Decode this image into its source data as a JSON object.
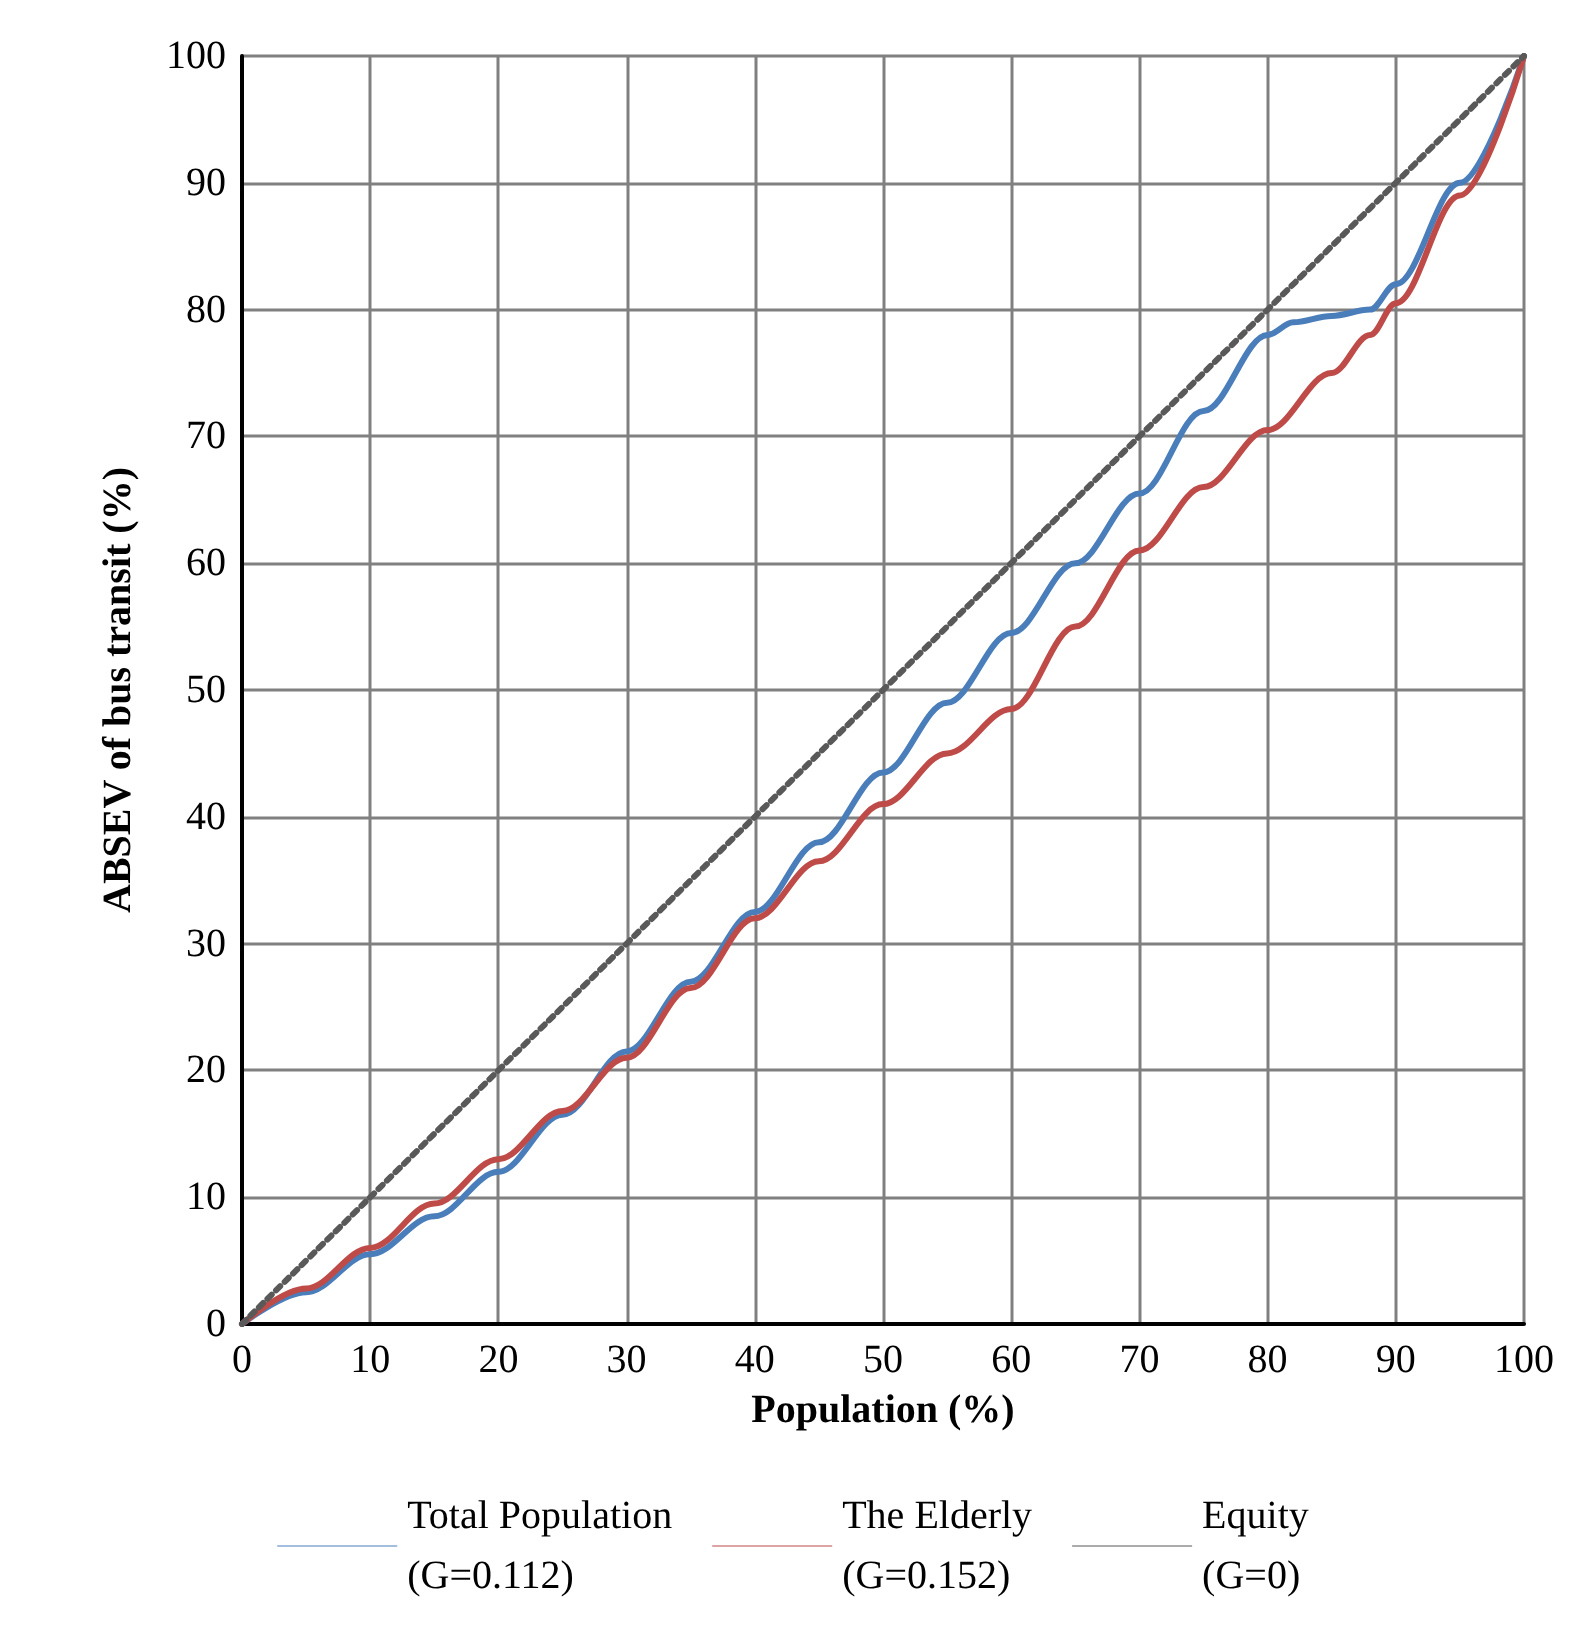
{
  "chart_data": {
    "type": "line",
    "xlabel": "Population (%)",
    "ylabel": "ABSEV of bus transit (%)",
    "xlim": [
      0,
      100
    ],
    "ylim": [
      0,
      100
    ],
    "xticks": [
      0,
      10,
      20,
      30,
      40,
      50,
      60,
      70,
      80,
      90,
      100
    ],
    "yticks": [
      0,
      10,
      20,
      30,
      40,
      50,
      60,
      70,
      80,
      90,
      100
    ],
    "grid": true,
    "legend": "bottom",
    "marker": "none",
    "series": [
      {
        "name": "Total Population\n(G=0.112)",
        "color": "#4a7ebb",
        "line_style": "solid",
        "x": [
          0,
          5,
          10,
          15,
          20,
          25,
          30,
          35,
          40,
          45,
          50,
          55,
          60,
          65,
          70,
          75,
          80,
          82,
          85,
          88,
          90,
          95,
          100
        ],
        "values": [
          0,
          2.5,
          5.5,
          8.5,
          12,
          16.5,
          21.5,
          27,
          32.5,
          38,
          43.5,
          49,
          54.5,
          60,
          65.5,
          72,
          78,
          79,
          79.5,
          80,
          82,
          90,
          100
        ]
      },
      {
        "name": "The Elderly\n(G=0.152)",
        "color": "#be4b48",
        "line_style": "solid",
        "x": [
          0,
          5,
          10,
          15,
          20,
          25,
          30,
          35,
          40,
          45,
          50,
          55,
          60,
          65,
          70,
          75,
          80,
          85,
          88,
          90,
          95,
          100
        ],
        "values": [
          0,
          2.8,
          6,
          9.5,
          13,
          16.8,
          21,
          26.5,
          32,
          36.5,
          41,
          45,
          48.5,
          55,
          61,
          66,
          70.5,
          75,
          78,
          80.5,
          89,
          100
        ]
      },
      {
        "name": "Equity\n(G=0)",
        "color": "#595959",
        "line_style": "dotted",
        "x": [
          0,
          100
        ],
        "values": [
          0,
          100
        ]
      }
    ]
  }
}
